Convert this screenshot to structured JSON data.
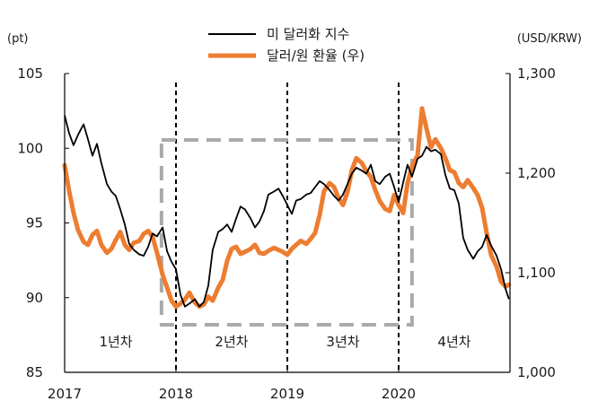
{
  "chart_data": {
    "type": "line",
    "x_axis": {
      "ticks": [
        "2017",
        "2018",
        "2019",
        "2020"
      ],
      "range": [
        "2017-01",
        "2020-12"
      ]
    },
    "y_left": {
      "unit": "(pt)",
      "min": 85,
      "max": 105,
      "ticks": [
        "85",
        "90",
        "95",
        "100",
        "105"
      ]
    },
    "y_right": {
      "unit": "(USD/KRW)",
      "min": 1000,
      "max": 1300,
      "ticks": [
        "1,000",
        "1,100",
        "1,200",
        "1,300"
      ]
    },
    "legend": {
      "placement": "top-center",
      "items": [
        "미 달러화 지수",
        "달러/원 환율 (우)"
      ]
    },
    "periods": [
      "1년차",
      "2년차",
      "3년차",
      "4년차"
    ],
    "series": [
      {
        "name": "미 달러화 지수",
        "axis": "left",
        "color": "#000000",
        "x": [
          2017.0,
          2017.04,
          2017.08,
          2017.12,
          2017.17,
          2017.21,
          2017.25,
          2017.29,
          2017.33,
          2017.38,
          2017.42,
          2017.46,
          2017.5,
          2017.54,
          2017.58,
          2017.62,
          2017.67,
          2017.71,
          2017.75,
          2017.79,
          2017.83,
          2017.88,
          2017.92,
          2017.96,
          2018.0,
          2018.04,
          2018.08,
          2018.12,
          2018.17,
          2018.21,
          2018.25,
          2018.29,
          2018.33,
          2018.38,
          2018.42,
          2018.46,
          2018.5,
          2018.54,
          2018.58,
          2018.62,
          2018.67,
          2018.71,
          2018.75,
          2018.79,
          2018.83,
          2018.88,
          2018.92,
          2018.96,
          2019.0,
          2019.04,
          2019.08,
          2019.12,
          2019.17,
          2019.21,
          2019.25,
          2019.29,
          2019.33,
          2019.38,
          2019.42,
          2019.46,
          2019.5,
          2019.54,
          2019.58,
          2019.62,
          2019.67,
          2019.71,
          2019.75,
          2019.79,
          2019.83,
          2019.88,
          2019.92,
          2019.96,
          2020.0,
          2020.04,
          2020.08,
          2020.12,
          2020.17,
          2020.21,
          2020.25,
          2020.29,
          2020.33,
          2020.38,
          2020.42,
          2020.46,
          2020.5,
          2020.54,
          2020.58,
          2020.62,
          2020.67,
          2020.71,
          2020.75,
          2020.79,
          2020.83,
          2020.88,
          2020.92,
          2020.96,
          2020.99
        ],
        "y": [
          102.2,
          101.0,
          100.2,
          100.9,
          101.6,
          100.6,
          99.5,
          100.3,
          99.0,
          97.6,
          97.1,
          96.8,
          95.9,
          94.9,
          93.6,
          93.2,
          92.9,
          92.8,
          93.4,
          94.3,
          94.1,
          94.7,
          93.1,
          92.4,
          91.9,
          90.2,
          89.4,
          89.6,
          89.9,
          89.4,
          89.7,
          90.8,
          93.2,
          94.4,
          94.6,
          94.9,
          94.4,
          95.3,
          96.1,
          95.9,
          95.3,
          94.7,
          95.1,
          95.8,
          96.9,
          97.1,
          97.3,
          96.8,
          96.2,
          95.6,
          96.5,
          96.6,
          96.9,
          97.0,
          97.4,
          97.8,
          97.6,
          97.2,
          96.8,
          96.5,
          96.9,
          97.6,
          98.3,
          98.7,
          98.5,
          98.3,
          98.9,
          97.8,
          97.6,
          98.1,
          98.3,
          97.4,
          96.4,
          97.7,
          98.9,
          98.1,
          99.3,
          99.5,
          100.1,
          99.8,
          99.9,
          99.6,
          98.2,
          97.3,
          97.2,
          96.3,
          94.0,
          93.2,
          92.6,
          93.1,
          93.4,
          94.2,
          93.5,
          92.8,
          91.9,
          90.6,
          89.9
        ]
      },
      {
        "name": "달러/원 환율 (우)",
        "axis": "right",
        "color": "#ed7d31",
        "x": [
          2017.0,
          2017.04,
          2017.08,
          2017.12,
          2017.17,
          2017.21,
          2017.25,
          2017.29,
          2017.33,
          2017.38,
          2017.42,
          2017.46,
          2017.5,
          2017.54,
          2017.58,
          2017.62,
          2017.67,
          2017.71,
          2017.75,
          2017.79,
          2017.83,
          2017.88,
          2017.92,
          2017.96,
          2018.0,
          2018.04,
          2018.08,
          2018.12,
          2018.17,
          2018.21,
          2018.25,
          2018.29,
          2018.33,
          2018.38,
          2018.42,
          2018.46,
          2018.5,
          2018.54,
          2018.58,
          2018.62,
          2018.67,
          2018.71,
          2018.75,
          2018.79,
          2018.83,
          2018.88,
          2018.92,
          2018.96,
          2019.0,
          2019.04,
          2019.08,
          2019.12,
          2019.17,
          2019.21,
          2019.25,
          2019.29,
          2019.33,
          2019.38,
          2019.42,
          2019.46,
          2019.5,
          2019.54,
          2019.58,
          2019.62,
          2019.67,
          2019.71,
          2019.75,
          2019.79,
          2019.83,
          2019.88,
          2019.92,
          2019.96,
          2020.0,
          2020.04,
          2020.08,
          2020.12,
          2020.17,
          2020.21,
          2020.25,
          2020.29,
          2020.33,
          2020.38,
          2020.42,
          2020.46,
          2020.5,
          2020.54,
          2020.58,
          2020.62,
          2020.67,
          2020.71,
          2020.75,
          2020.79,
          2020.83,
          2020.88,
          2020.92,
          2020.96,
          2020.99
        ],
        "y": [
          1208,
          1182,
          1160,
          1143,
          1131,
          1128,
          1138,
          1142,
          1128,
          1120,
          1124,
          1133,
          1141,
          1128,
          1123,
          1130,
          1132,
          1139,
          1142,
          1136,
          1120,
          1098,
          1085,
          1072,
          1066,
          1069,
          1073,
          1080,
          1070,
          1066,
          1068,
          1076,
          1072,
          1085,
          1093,
          1112,
          1124,
          1126,
          1119,
          1121,
          1124,
          1128,
          1120,
          1119,
          1122,
          1125,
          1123,
          1121,
          1118,
          1124,
          1128,
          1132,
          1129,
          1134,
          1140,
          1158,
          1182,
          1190,
          1186,
          1175,
          1168,
          1181,
          1203,
          1215,
          1210,
          1202,
          1196,
          1183,
          1172,
          1164,
          1162,
          1178,
          1168,
          1160,
          1190,
          1207,
          1218,
          1265,
          1245,
          1226,
          1234,
          1225,
          1215,
          1203,
          1201,
          1190,
          1186,
          1193,
          1185,
          1178,
          1165,
          1140,
          1118,
          1106,
          1091,
          1086,
          1088
        ]
      }
    ]
  }
}
